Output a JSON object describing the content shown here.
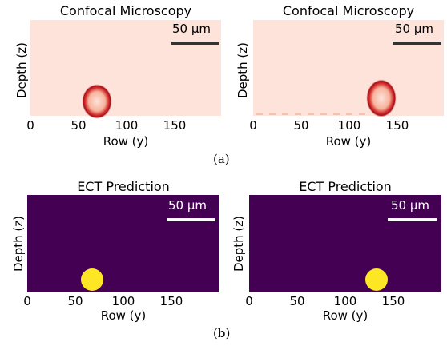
{
  "figure": {
    "row_a": {
      "sublabel": "(a)",
      "panels": [
        {
          "title": "Confocal Microscopy",
          "ylabel": "Depth (z)",
          "xlabel": "Row (y)",
          "xticks": [
            "0",
            "50",
            "100",
            "150"
          ],
          "scalebar": "50 µm",
          "object_x": 65
        },
        {
          "title": "Confocal Microscopy",
          "ylabel": "Depth (z)",
          "xlabel": "Row (y)",
          "xticks": [
            "0",
            "50",
            "100",
            "150"
          ],
          "scalebar": "50 µm",
          "object_x": 131
        }
      ]
    },
    "row_b": {
      "sublabel": "(b)",
      "panels": [
        {
          "title": "ECT Prediction",
          "ylabel": "Depth (z)",
          "xlabel": "Row (y)",
          "xticks": [
            "0",
            "50",
            "100",
            "150"
          ],
          "scalebar": "50 µm",
          "object_x": 68
        },
        {
          "title": "ECT Prediction",
          "ylabel": "Depth (z)",
          "xlabel": "Row (y)",
          "xticks": [
            "0",
            "50",
            "100",
            "150"
          ],
          "scalebar": "50 µm",
          "object_x": 133
        }
      ]
    }
  },
  "colors": {
    "confocal_bg": "#fde3d9",
    "confocal_ring": "#b01217",
    "ect_bg": "#440154",
    "ect_blob": "#fde725",
    "scalebar_dark": "#333333",
    "scalebar_light": "#ffffff"
  }
}
